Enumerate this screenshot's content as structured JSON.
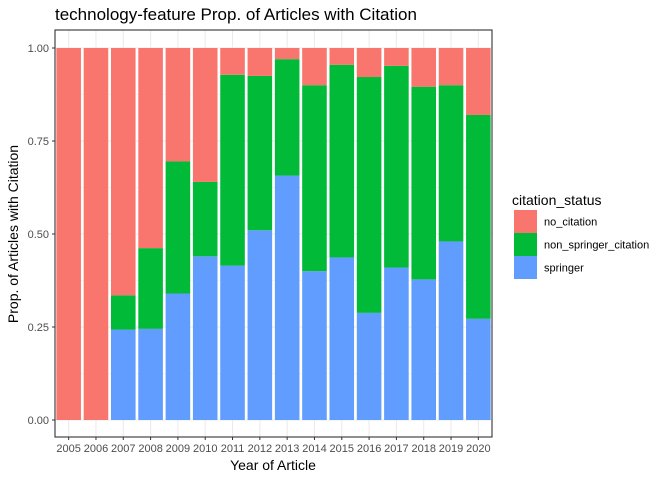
{
  "chart_data": {
    "type": "bar",
    "stacked": true,
    "title": "technology-feature Prop. of Articles with Citation",
    "xlabel": "Year of Article",
    "ylabel": "Prop. of Articles with Citation",
    "ylim": [
      0,
      1
    ],
    "yticks": [
      "0.00",
      "0.25",
      "0.50",
      "0.75",
      "1.00"
    ],
    "grid": true,
    "legend_position": "right",
    "legend_title": "citation_status",
    "categories": [
      "2005",
      "2006",
      "2007",
      "2008",
      "2009",
      "2010",
      "2011",
      "2012",
      "2013",
      "2014",
      "2015",
      "2016",
      "2017",
      "2018",
      "2019",
      "2020"
    ],
    "series": [
      {
        "name": "springer",
        "color": "#619CFF",
        "values": [
          0,
          0,
          0.243,
          0.245,
          0.34,
          0.44,
          0.415,
          0.51,
          0.657,
          0.4,
          0.437,
          0.288,
          0.41,
          0.378,
          0.48,
          0.272
        ]
      },
      {
        "name": "non_springer_citation",
        "color": "#00BA38",
        "values": [
          0,
          0,
          0.092,
          0.217,
          0.355,
          0.2,
          0.513,
          0.415,
          0.313,
          0.5,
          0.518,
          0.634,
          0.542,
          0.518,
          0.42,
          0.548
        ]
      },
      {
        "name": "no_citation",
        "color": "#F8766D",
        "values": [
          1,
          1,
          0.665,
          0.538,
          0.305,
          0.36,
          0.072,
          0.075,
          0.03,
          0.1,
          0.045,
          0.078,
          0.048,
          0.104,
          0.1,
          0.18
        ]
      }
    ],
    "legend_order": [
      "no_citation",
      "non_springer_citation",
      "springer"
    ]
  }
}
